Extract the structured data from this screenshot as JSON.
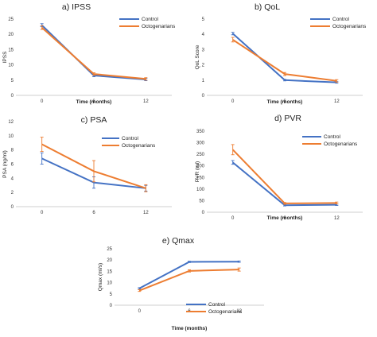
{
  "series_colors": {
    "Control": "#4472C4",
    "Octogenarians": "#ED7D31"
  },
  "chart_data": [
    {
      "type": "line",
      "title": "a) IPSS",
      "xlabel": "Time (months)",
      "ylabel": "IPSS",
      "categories": [
        "0",
        "6",
        "12"
      ],
      "ylim": [
        0,
        25
      ],
      "yticks": [
        0,
        5,
        10,
        15,
        20,
        25
      ],
      "grid": false,
      "legend": "top-right",
      "series": [
        {
          "name": "Control",
          "values": [
            23,
            6.5,
            5.2
          ],
          "errors": [
            0.5,
            0.4,
            0.4
          ]
        },
        {
          "name": "Octogenarians",
          "values": [
            22.2,
            7.0,
            5.4
          ],
          "errors": [
            0.6,
            0.4,
            0.4
          ]
        }
      ]
    },
    {
      "type": "line",
      "title": "b) QoL",
      "xlabel": "Time (months)",
      "ylabel": "QoL Score",
      "categories": [
        "0",
        "6",
        "12"
      ],
      "ylim": [
        0,
        5
      ],
      "yticks": [
        0,
        1,
        2,
        3,
        4,
        5
      ],
      "grid": false,
      "legend": "top-right",
      "series": [
        {
          "name": "Control",
          "values": [
            4.05,
            1.0,
            0.85
          ],
          "errors": [
            0.08,
            0.05,
            0.05
          ]
        },
        {
          "name": "Octogenarians",
          "values": [
            3.65,
            1.4,
            0.95
          ],
          "errors": [
            0.15,
            0.1,
            0.08
          ]
        }
      ]
    },
    {
      "type": "line",
      "title": "c) PSA",
      "xlabel": "",
      "ylabel": "PSA (ng/ml)",
      "categories": [
        "0",
        "6",
        "12"
      ],
      "ylim": [
        0,
        12
      ],
      "yticks": [
        0,
        2,
        4,
        6,
        8,
        10,
        12
      ],
      "grid": false,
      "legend": "top-right",
      "series": [
        {
          "name": "Control",
          "values": [
            6.8,
            3.4,
            2.6
          ],
          "errors": [
            0.8,
            0.8,
            0.4
          ]
        },
        {
          "name": "Octogenarians",
          "values": [
            8.8,
            5.0,
            2.6
          ],
          "errors": [
            1.0,
            1.5,
            0.5
          ]
        }
      ]
    },
    {
      "type": "line",
      "title": "d) PVR",
      "xlabel": "Time (months)",
      "ylabel": "PVR (ml)",
      "categories": [
        "0",
        "6",
        "12"
      ],
      "ylim": [
        0,
        350
      ],
      "yticks": [
        0,
        50,
        100,
        150,
        200,
        250,
        300,
        350
      ],
      "grid": false,
      "legend": "top-right",
      "series": [
        {
          "name": "Control",
          "values": [
            215,
            30,
            32
          ],
          "errors": [
            8,
            3,
            3
          ]
        },
        {
          "name": "Octogenarians",
          "values": [
            270,
            38,
            40
          ],
          "errors": [
            22,
            4,
            4
          ]
        }
      ]
    },
    {
      "type": "line",
      "title": "e) Qmax",
      "xlabel": "Time (months)",
      "ylabel": "Qmax (ml/s)",
      "categories": [
        "0",
        "6",
        "12"
      ],
      "ylim": [
        0,
        25
      ],
      "yticks": [
        0,
        5,
        10,
        15,
        20,
        25
      ],
      "grid": false,
      "legend": "bottom-right",
      "series": [
        {
          "name": "Control",
          "values": [
            7.5,
            19.2,
            19.3
          ],
          "errors": [
            0.3,
            0.3,
            0.3
          ]
        },
        {
          "name": "Octogenarians",
          "values": [
            6.5,
            15.2,
            15.8
          ],
          "errors": [
            0.4,
            0.5,
            0.7
          ]
        }
      ]
    }
  ]
}
